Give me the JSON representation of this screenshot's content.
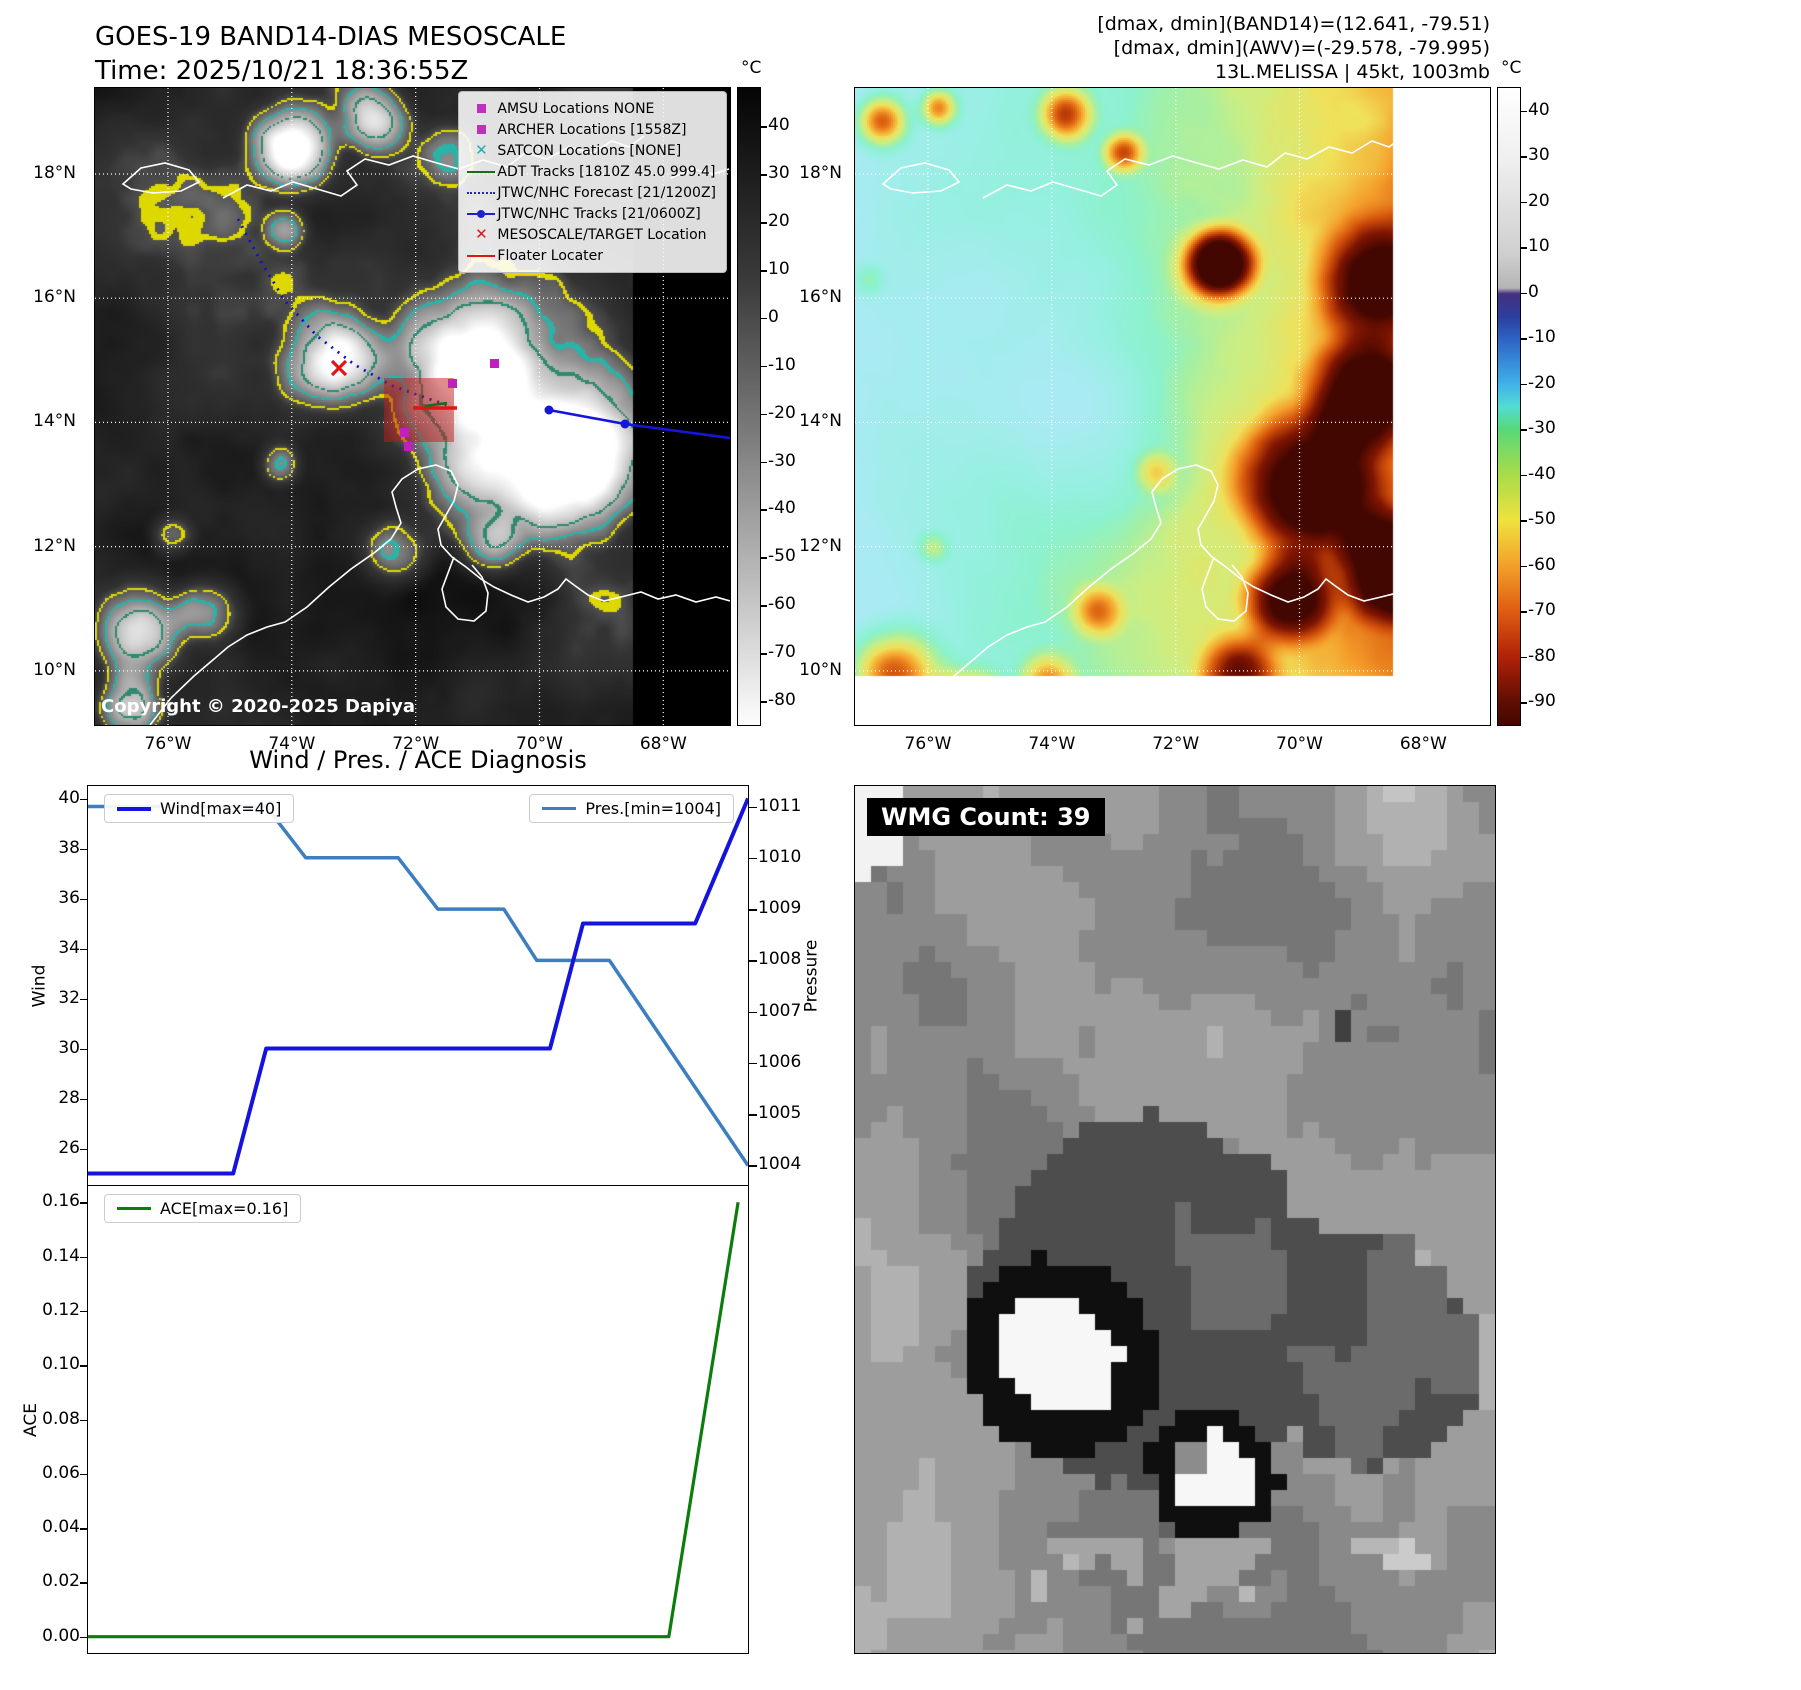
{
  "top_left": {
    "title_line1": "GOES-19 BAND14-DIAS MESOSCALE",
    "title_line2": "Time: 2025/10/21 18:36:55Z",
    "copyright": "Copyright © 2020-2025 Dapiya",
    "legend": [
      {
        "label": "AMSU Locations NONE",
        "marker": "square",
        "color": "#bb33bb"
      },
      {
        "label": "ARCHER Locations [1558Z]",
        "marker": "square",
        "color": "#bb33bb"
      },
      {
        "label": "SATCON Locations [NONE]",
        "marker": "x",
        "color": "#20b2aa"
      },
      {
        "label": "ADT Tracks [1810Z 45.0 999.4]",
        "marker": "line",
        "color": "#1a6b1a"
      },
      {
        "label": "JTWC/NHC Forecast [21/1200Z]",
        "marker": "dotted-line",
        "color": "#2222cc"
      },
      {
        "label": "JTWC/NHC Tracks [21/0600Z]",
        "marker": "line-dot",
        "color": "#2222cc"
      },
      {
        "label": "MESOSCALE/TARGET Location",
        "marker": "x",
        "color": "#e01515"
      },
      {
        "label": "Floater Locater",
        "marker": "line",
        "color": "#e01515"
      }
    ],
    "colorbar": {
      "unit": "°C",
      "ticks": [
        40,
        30,
        20,
        10,
        0,
        -10,
        -20,
        -30,
        -40,
        -50,
        -60,
        -70,
        -80
      ]
    },
    "lat_ticks": [
      "18°N",
      "16°N",
      "14°N",
      "12°N",
      "10°N"
    ],
    "lon_ticks": [
      "76°W",
      "74°W",
      "72°W",
      "70°W",
      "68°W"
    ]
  },
  "top_right": {
    "info_line1": "[dmax, dmin](BAND14)=(12.641, -79.51)",
    "info_line2": "[dmax, dmin](AWV)=(-29.578, -79.995)",
    "info_line3": "13L.MELISSA | 45kt, 1003mb",
    "colorbar": {
      "unit": "°C",
      "ticks": [
        40,
        30,
        20,
        10,
        0,
        -10,
        -20,
        -30,
        -40,
        -50,
        -60,
        -70,
        -80,
        -90
      ]
    },
    "lat_ticks": [
      "18°N",
      "16°N",
      "14°N",
      "12°N",
      "10°N"
    ],
    "lon_ticks": [
      "76°W",
      "74°W",
      "72°W",
      "70°W",
      "68°W"
    ]
  },
  "bottom_left": {
    "title": "Wind / Pres. / ACE Diagnosis",
    "wind_legend": "Wind[max=40]",
    "pres_legend": "Pres.[min=1004]",
    "ace_legend": "ACE[max=0.16]",
    "wind_axis_label": "Wind",
    "pressure_axis_label": "Pressure",
    "ace_axis_label": "ACE",
    "wind_ticks": [
      26,
      28,
      30,
      32,
      34,
      36,
      38,
      40
    ],
    "pressure_ticks": [
      1004,
      1005,
      1006,
      1007,
      1008,
      1009,
      1010,
      1011
    ],
    "ace_ticks": [
      "0.00",
      "0.02",
      "0.04",
      "0.06",
      "0.08",
      "0.10",
      "0.12",
      "0.14",
      "0.16"
    ]
  },
  "bottom_right": {
    "wmg_label": "WMG Count: 39"
  },
  "chart_data": [
    {
      "type": "line",
      "title": "Wind / Pres. / ACE Diagnosis",
      "x_axis": "normalized time (no x tick labels shown)",
      "xlim": [
        0,
        1
      ],
      "left_ylabel": "Wind",
      "left_ylim": [
        24.5,
        40.5
      ],
      "right_ylabel": "Pressure",
      "right_ylim": [
        1003.6,
        1011.4
      ],
      "grid": false,
      "series": [
        {
          "name": "Wind[max=40]",
          "axis": "left",
          "color": "#1414dd",
          "points": [
            [
              0,
              25
            ],
            [
              0.22,
              25
            ],
            [
              0.27,
              30
            ],
            [
              0.7,
              30
            ],
            [
              0.75,
              35
            ],
            [
              0.92,
              35
            ],
            [
              1.0,
              40
            ]
          ]
        },
        {
          "name": "Pres.[min=1004]",
          "axis": "right",
          "color": "#3c7ebf",
          "points": [
            [
              0,
              1011
            ],
            [
              0.27,
              1011
            ],
            [
              0.33,
              1010
            ],
            [
              0.47,
              1010
            ],
            [
              0.53,
              1009
            ],
            [
              0.63,
              1009
            ],
            [
              0.68,
              1008
            ],
            [
              0.79,
              1008
            ],
            [
              1.0,
              1004
            ]
          ]
        }
      ]
    },
    {
      "type": "line",
      "x_axis": "normalized time (no x tick labels shown)",
      "xlim": [
        0,
        1
      ],
      "ylabel": "ACE",
      "ylim": [
        -0.006,
        0.166
      ],
      "grid": false,
      "series": [
        {
          "name": "ACE[max=0.16]",
          "color": "#0a7d0a",
          "points": [
            [
              0,
              0
            ],
            [
              0.88,
              0
            ],
            [
              0.985,
              0.16
            ]
          ]
        }
      ]
    }
  ]
}
